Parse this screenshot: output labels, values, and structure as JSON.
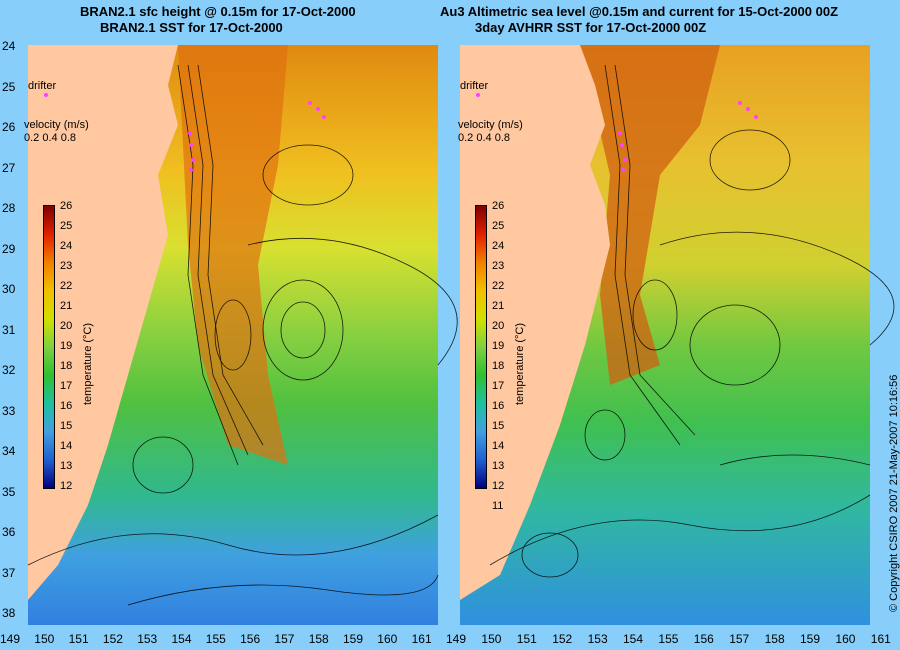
{
  "left_panel": {
    "title_line1": "BRAN2.1 sfc height @ 0.15m for 17-Oct-2000",
    "title_line2": "BRAN2.1 SST for 17-Oct-2000",
    "drifter_label": "drifter",
    "velocity_label": "velocity (m/s)",
    "velocity_scale": "0.2 0.4 0.8",
    "colorbar_label": "temperature (°C)",
    "colorbar_ticks": [
      "26",
      "25",
      "24",
      "23",
      "22",
      "21",
      "20",
      "19",
      "18",
      "17",
      "16",
      "15",
      "14",
      "13",
      "12"
    ]
  },
  "right_panel": {
    "title_line1": "Au3 Altimetric sea level  @0.15m and current for 15-Oct-2000 00Z",
    "title_line2": "3day AVHRR SST for 17-Oct-2000 00Z",
    "drifter_label": "drifter",
    "velocity_label": "velocity (m/s)",
    "velocity_scale": "0.2 0.4 0.8",
    "colorbar_label": "temperature (°C)",
    "colorbar_ticks": [
      "26",
      "25",
      "24",
      "23",
      "22",
      "21",
      "20",
      "19",
      "18",
      "17",
      "16",
      "15",
      "14",
      "13",
      "12",
      "11"
    ]
  },
  "y_axis_ticks": [
    "24",
    "25",
    "26",
    "27",
    "28",
    "29",
    "30",
    "31",
    "32",
    "33",
    "34",
    "35",
    "36",
    "37",
    "38"
  ],
  "x_axis_ticks": [
    "149",
    "150",
    "151",
    "152",
    "153",
    "154",
    "155",
    "156",
    "157",
    "158",
    "159",
    "160",
    "161"
  ],
  "copyright": "© Copyright CSIRO 2007   21-May-2007 10:16:56",
  "colors": {
    "background": "#87cefa",
    "land": "#ffc8a0",
    "drifter": "#ff40ff"
  }
}
